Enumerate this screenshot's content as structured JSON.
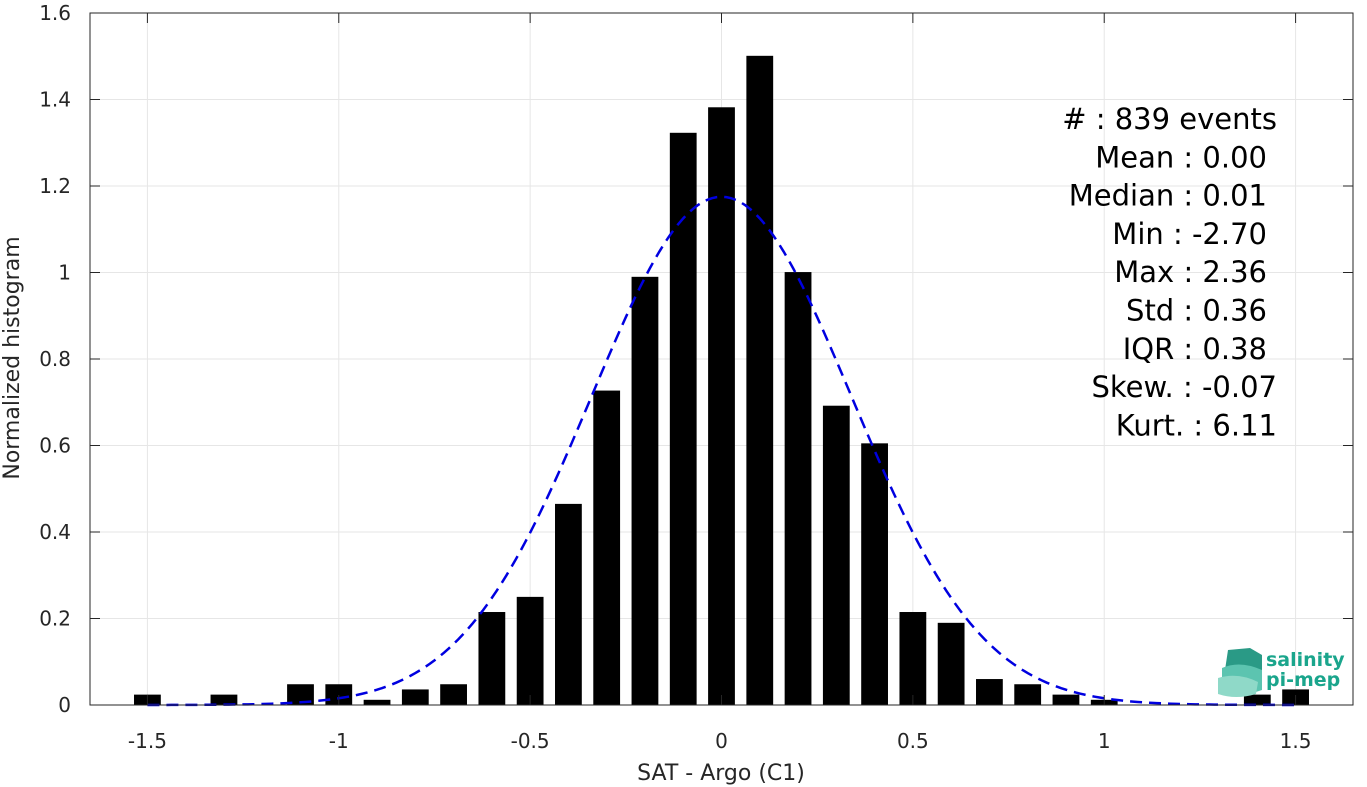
{
  "chart_data": {
    "type": "bar",
    "xlabel": "SAT - Argo (C1)",
    "ylabel": "Normalized histogram",
    "xlim": [
      -1.65,
      1.65
    ],
    "ylim": [
      0,
      1.6
    ],
    "xticks": [
      -1.5,
      -1,
      -0.5,
      0,
      0.5,
      1,
      1.5
    ],
    "xtick_labels": [
      "-1.5",
      "-1",
      "-0.5",
      "0",
      "0.5",
      "1",
      "1.5"
    ],
    "yticks": [
      0,
      0.2,
      0.4,
      0.6,
      0.8,
      1,
      1.2,
      1.4,
      1.6
    ],
    "ytick_labels": [
      "0",
      "0.2",
      "0.4",
      "0.6",
      "0.8",
      "1",
      "1.2",
      "1.4",
      "1.6"
    ],
    "grid": true,
    "bar_width": 0.07,
    "bar_color": "#000000",
    "bars": [
      {
        "x": -1.5,
        "value": 0.024
      },
      {
        "x": -1.3,
        "value": 0.024
      },
      {
        "x": -1.1,
        "value": 0.048
      },
      {
        "x": -1.0,
        "value": 0.048
      },
      {
        "x": -0.9,
        "value": 0.012
      },
      {
        "x": -0.8,
        "value": 0.036
      },
      {
        "x": -0.7,
        "value": 0.048
      },
      {
        "x": -0.6,
        "value": 0.215
      },
      {
        "x": -0.5,
        "value": 0.25
      },
      {
        "x": -0.4,
        "value": 0.465
      },
      {
        "x": -0.3,
        "value": 0.727
      },
      {
        "x": -0.2,
        "value": 0.99
      },
      {
        "x": -0.1,
        "value": 1.323
      },
      {
        "x": 0.0,
        "value": 1.382
      },
      {
        "x": 0.1,
        "value": 1.501
      },
      {
        "x": 0.2,
        "value": 1.001
      },
      {
        "x": 0.3,
        "value": 0.692
      },
      {
        "x": 0.4,
        "value": 0.605
      },
      {
        "x": 0.5,
        "value": 0.215
      },
      {
        "x": 0.6,
        "value": 0.19
      },
      {
        "x": 0.7,
        "value": 0.06
      },
      {
        "x": 0.8,
        "value": 0.048
      },
      {
        "x": 0.9,
        "value": 0.024
      },
      {
        "x": 1.0,
        "value": 0.012
      },
      {
        "x": 1.4,
        "value": 0.024
      },
      {
        "x": 1.5,
        "value": 0.036
      }
    ],
    "fit_curve": {
      "type": "gaussian",
      "mean": 0.0,
      "std": 0.34,
      "peak": 1.175,
      "x_range": [
        -1.5,
        1.5
      ],
      "color": "#0000e0",
      "style": "dashed"
    },
    "annotation_lines": [
      "#  : 839 events",
      "Mean : 0.00",
      "Median : 0.01",
      "Min : -2.70",
      "Max : 2.36",
      "Std : 0.36",
      "IQR : 0.38",
      "Skew. : -0.07",
      "Kurt. : 6.11"
    ]
  },
  "logo": {
    "line1": "salinity",
    "line2": "pi-mep",
    "color": "#1aa58c"
  }
}
